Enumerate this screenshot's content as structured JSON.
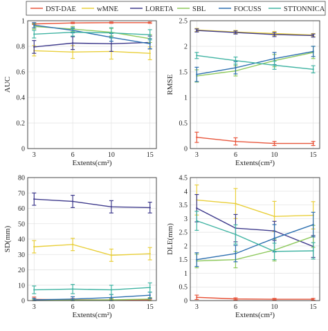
{
  "legend": {
    "entries": [
      {
        "name": "DST-DAE",
        "color": "#e8553b"
      },
      {
        "name": "wMNE",
        "color": "#e9cf3a"
      },
      {
        "name": "LORETA",
        "color": "#3e3a8c"
      },
      {
        "name": "SBL",
        "color": "#8cc85a"
      },
      {
        "name": "FOCUSS",
        "color": "#2c6fb0"
      },
      {
        "name": "STTONNICA",
        "color": "#3fb3a2"
      }
    ]
  },
  "chart_data": [
    {
      "type": "line",
      "xlabel": "Extents(cm²)",
      "ylabel": "AUC",
      "ylim": [
        0,
        1
      ],
      "yticks": [
        0,
        0.2,
        0.4,
        0.6,
        0.8,
        1
      ],
      "ytick_labels": [
        "0",
        "0.2",
        "0.4",
        "0.6",
        "0.8",
        "1"
      ],
      "categories": [
        "3",
        "6",
        "10",
        "15"
      ],
      "grid": true,
      "series": [
        {
          "name": "DST-DAE",
          "values": [
            0.975,
            0.983,
            0.985,
            0.985
          ],
          "err": [
            0.005,
            0.005,
            0.005,
            0.005
          ]
        },
        {
          "name": "wMNE",
          "values": [
            0.765,
            0.755,
            0.76,
            0.745
          ],
          "err": [
            0.04,
            0.05,
            0.06,
            0.05
          ]
        },
        {
          "name": "LORETA",
          "values": [
            0.795,
            0.825,
            0.82,
            0.83
          ],
          "err": [
            0.05,
            0.05,
            0.06,
            0.05
          ]
        },
        {
          "name": "SBL",
          "values": [
            0.955,
            0.935,
            0.91,
            0.86
          ],
          "err": [
            0.02,
            0.02,
            0.03,
            0.03
          ]
        },
        {
          "name": "FOCUSS",
          "values": [
            0.965,
            0.925,
            0.87,
            0.82
          ],
          "err": [
            0.02,
            0.02,
            0.03,
            0.04
          ]
        },
        {
          "name": "STTONNICA",
          "values": [
            0.895,
            0.91,
            0.905,
            0.89
          ],
          "err": [
            0.03,
            0.03,
            0.04,
            0.04
          ]
        }
      ]
    },
    {
      "type": "line",
      "xlabel": "Extents(cm²)",
      "ylabel": "RMSE",
      "ylim": [
        0,
        2.5
      ],
      "yticks": [
        0,
        0.5,
        1,
        1.5,
        2,
        2.5
      ],
      "ytick_labels": [
        "0",
        "0.5",
        "1",
        "1.5",
        "2",
        "2.5"
      ],
      "categories": [
        "3",
        "6",
        "10",
        "15"
      ],
      "grid": true,
      "series": [
        {
          "name": "DST-DAE",
          "values": [
            0.22,
            0.14,
            0.1,
            0.1
          ],
          "err": [
            0.1,
            0.07,
            0.04,
            0.04
          ]
        },
        {
          "name": "wMNE",
          "values": [
            2.32,
            2.28,
            2.25,
            2.22
          ],
          "err": [
            0.03,
            0.03,
            0.04,
            0.03
          ]
        },
        {
          "name": "LORETA",
          "values": [
            2.31,
            2.27,
            2.23,
            2.21
          ],
          "err": [
            0.03,
            0.03,
            0.04,
            0.03
          ]
        },
        {
          "name": "SBL",
          "values": [
            1.42,
            1.52,
            1.72,
            1.88
          ],
          "err": [
            0.12,
            0.1,
            0.12,
            0.12
          ]
        },
        {
          "name": "FOCUSS",
          "values": [
            1.45,
            1.58,
            1.76,
            1.9
          ],
          "err": [
            0.14,
            0.12,
            0.12,
            0.1
          ]
        },
        {
          "name": "STTONNICA",
          "values": [
            1.82,
            1.72,
            1.63,
            1.55
          ],
          "err": [
            0.06,
            0.07,
            0.08,
            0.07
          ]
        }
      ]
    },
    {
      "type": "line",
      "xlabel": "Extents(cm²)",
      "ylabel": "SD(mm)",
      "ylim": [
        0,
        80
      ],
      "yticks": [
        0,
        10,
        20,
        30,
        40,
        50,
        60,
        70,
        80
      ],
      "ytick_labels": [
        "0",
        "10",
        "20",
        "30",
        "40",
        "50",
        "60",
        "70",
        "80"
      ],
      "categories": [
        "3",
        "6",
        "10",
        "15"
      ],
      "grid": true,
      "series": [
        {
          "name": "DST-DAE",
          "values": [
            0.8,
            0.5,
            0.4,
            0.4
          ],
          "err": [
            1.5,
            0.8,
            0.5,
            0.5
          ]
        },
        {
          "name": "wMNE",
          "values": [
            35,
            36.5,
            29.5,
            30.5
          ],
          "err": [
            4,
            4,
            4,
            4
          ]
        },
        {
          "name": "LORETA",
          "values": [
            66,
            64.5,
            61,
            60.5
          ],
          "err": [
            4,
            4,
            4,
            3.5
          ]
        },
        {
          "name": "SBL",
          "values": [
            0.2,
            0.3,
            0.5,
            1.0
          ],
          "err": [
            0.5,
            0.5,
            0.8,
            1
          ]
        },
        {
          "name": "FOCUSS",
          "values": [
            0.5,
            1.0,
            2.0,
            3.5
          ],
          "err": [
            1,
            1.5,
            2,
            2
          ]
        },
        {
          "name": "STTONNICA",
          "values": [
            7,
            7.5,
            7,
            8.5
          ],
          "err": [
            2.5,
            3,
            3,
            3
          ]
        }
      ]
    },
    {
      "type": "line",
      "xlabel": "Extents(cm²)",
      "ylabel": "DLE(mm)",
      "ylim": [
        0,
        4.5
      ],
      "yticks": [
        0,
        0.5,
        1,
        1.5,
        2,
        2.5,
        3,
        3.5,
        4,
        4.5
      ],
      "ytick_labels": [
        "0",
        "0.5",
        "1",
        "1.5",
        "2",
        "2.5",
        "3",
        "3.5",
        "4",
        "4.5"
      ],
      "categories": [
        "3",
        "6",
        "10",
        "15"
      ],
      "grid": true,
      "series": [
        {
          "name": "DST-DAE",
          "values": [
            0.12,
            0.06,
            0.05,
            0.05
          ],
          "err": [
            0.08,
            0.04,
            0.03,
            0.03
          ]
        },
        {
          "name": "wMNE",
          "values": [
            3.68,
            3.55,
            3.08,
            3.12
          ],
          "err": [
            0.55,
            0.55,
            0.55,
            0.5
          ]
        },
        {
          "name": "LORETA",
          "values": [
            3.38,
            2.65,
            2.55,
            1.98
          ],
          "err": [
            0.5,
            0.5,
            0.35,
            0.4
          ]
        },
        {
          "name": "SBL",
          "values": [
            1.45,
            1.5,
            1.85,
            2.35
          ],
          "err": [
            0.25,
            0.3,
            0.4,
            0.4
          ]
        },
        {
          "name": "FOCUSS",
          "values": [
            1.5,
            1.72,
            2.28,
            2.78
          ],
          "err": [
            0.25,
            0.3,
            0.5,
            0.45
          ]
        },
        {
          "name": "STTONNICA",
          "values": [
            2.92,
            2.42,
            1.8,
            1.82
          ],
          "err": [
            0.35,
            0.35,
            0.3,
            0.3
          ]
        }
      ]
    }
  ]
}
